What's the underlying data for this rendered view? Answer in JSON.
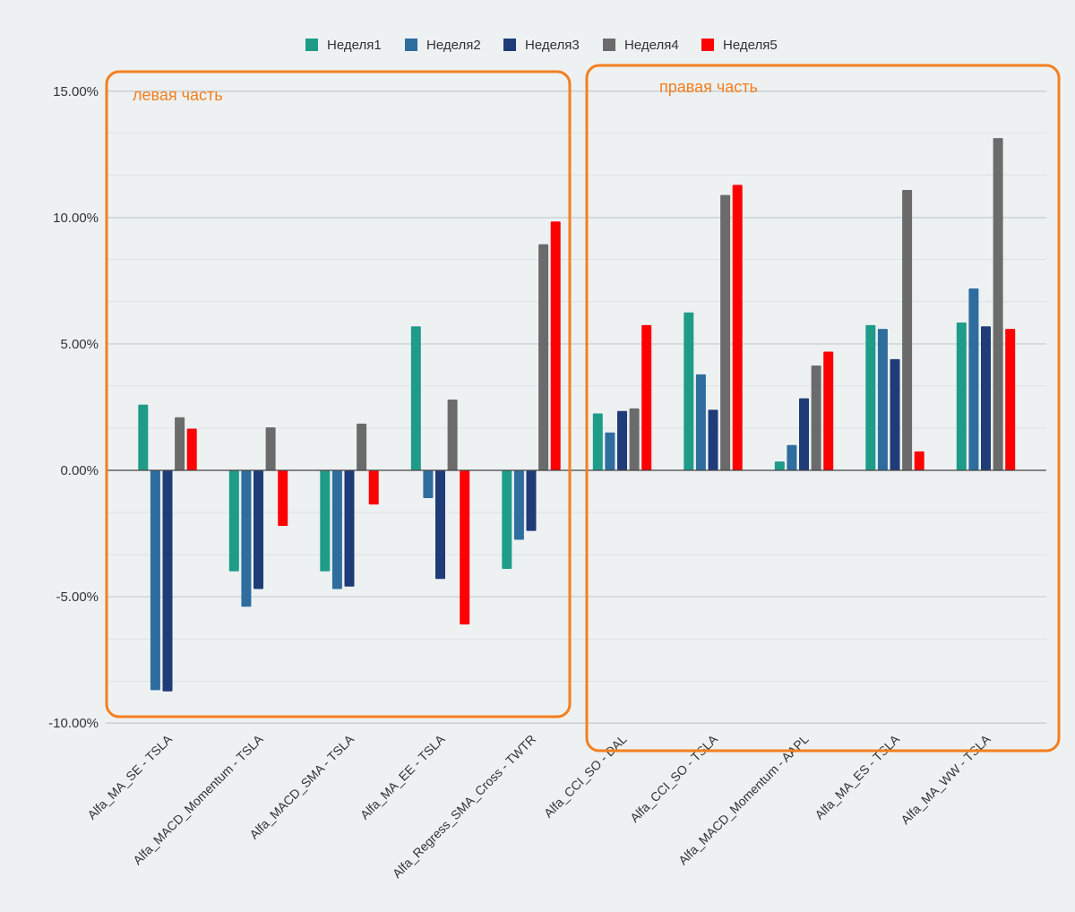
{
  "chart_data": {
    "type": "bar",
    "categories": [
      "Alfa_MA_SE - TSLA",
      "Alfa_MACD_Momentum - TSLA",
      "Alfa_MACD_SMA - TSLA",
      "Alfa_MA_EE - TSLA",
      "Alfa_Regress_SMA_Cross - TWTR",
      "Alfa_CCI_SO - DAL",
      "Alfa_CCI_SO - TSLA",
      "Alfa_MACD_Momentum - AAPL",
      "Alfa_MA_ES - TSLA",
      "Alfa_MA_WW - TSLA"
    ],
    "series": [
      {
        "name": "Неделя1",
        "color": "#1e9c88",
        "values": [
          2.6,
          -4.0,
          -4.0,
          5.7,
          -3.9,
          2.25,
          6.25,
          0.35,
          5.75,
          5.85
        ]
      },
      {
        "name": "Неделя2",
        "color": "#2e6d9e",
        "values": [
          -8.7,
          -5.4,
          -4.7,
          -1.1,
          -2.75,
          1.5,
          3.8,
          1.0,
          5.6,
          7.2
        ]
      },
      {
        "name": "Неделя3",
        "color": "#1f3b78",
        "values": [
          -8.75,
          -4.7,
          -4.6,
          -4.3,
          -2.4,
          2.35,
          2.4,
          2.85,
          4.4,
          5.7
        ]
      },
      {
        "name": "Неделя4",
        "color": "#6b6b6b",
        "values": [
          2.1,
          1.7,
          1.85,
          2.8,
          8.95,
          2.45,
          10.9,
          4.15,
          11.1,
          13.15
        ]
      },
      {
        "name": "Неделя5",
        "color": "#ff0000",
        "values": [
          1.65,
          -2.2,
          -1.35,
          -6.1,
          9.85,
          5.75,
          11.3,
          4.7,
          0.75,
          5.6
        ]
      }
    ],
    "ylim": [
      -10.5,
      15.5
    ],
    "yticks": [
      {
        "value": 15,
        "label": "15.00%"
      },
      {
        "value": 10,
        "label": "10.00%"
      },
      {
        "value": 5,
        "label": "5.00%"
      },
      {
        "value": 0,
        "label": "0.00%"
      },
      {
        "value": -5,
        "label": "-5.00%"
      },
      {
        "value": -10,
        "label": "-10.00%"
      }
    ],
    "minor_grid_step": 1.67,
    "grid": true,
    "legend_position": "top-center",
    "annotations": [
      {
        "text": "левая часть",
        "color": "#f47f1f"
      },
      {
        "text": "правая часть",
        "color": "#f47f1f"
      }
    ]
  }
}
